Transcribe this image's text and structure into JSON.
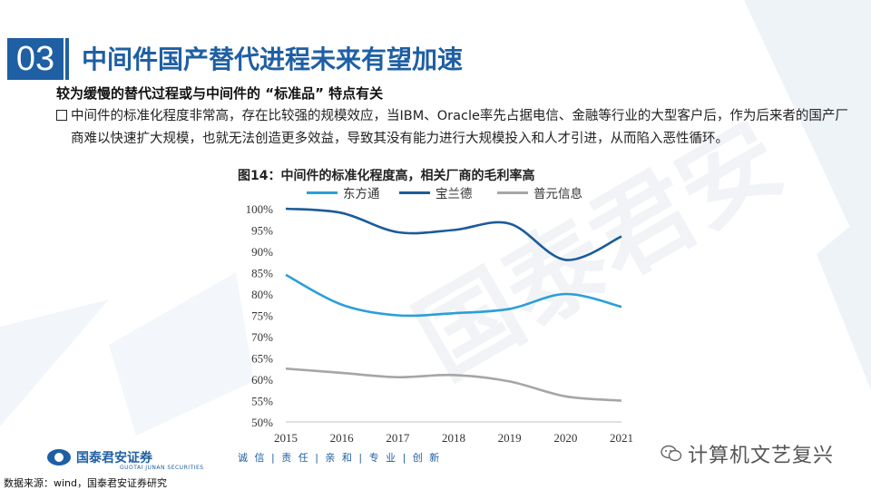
{
  "header": {
    "section_number": "03",
    "title": "中间件国产替代进程未来有望加速"
  },
  "subtitle": "较为缓慢的替代过程或与中间件的 “标准品” 特点有关",
  "body_text": "中间件的标准化程度非常高，存在比较强的规模效应，当IBM、Oracle率先占据电信、金融等行业的大型客户后，作为后来者的国产厂商难以快速扩大规模，也就无法创造更多效益，导致其没有能力进行大规模投入和人才引进，从而陷入恶性循环。",
  "chart_data": {
    "type": "line",
    "title": "图14：中间件的标准化程度高，相关厂商的毛利率高",
    "x": [
      2015,
      2016,
      2017,
      2018,
      2019,
      2020,
      2021
    ],
    "x_tick_labels": [
      "2015",
      "2016",
      "2017",
      "2018",
      "2019",
      "2020",
      "2021"
    ],
    "y_tick_labels": [
      "50%",
      "55%",
      "60%",
      "65%",
      "70%",
      "75%",
      "80%",
      "85%",
      "90%",
      "95%",
      "100%"
    ],
    "ylim": [
      50,
      100
    ],
    "y_ticks": [
      50,
      55,
      60,
      65,
      70,
      75,
      80,
      85,
      90,
      95,
      100
    ],
    "series": [
      {
        "name": "东方通",
        "color": "#2a9fd8",
        "values": [
          84.5,
          77.5,
          75,
          75.5,
          76.5,
          80,
          77
        ]
      },
      {
        "name": "宝兰德",
        "color": "#1b5c9a",
        "values": [
          100,
          99,
          94.5,
          95,
          96.5,
          88,
          93.5
        ]
      },
      {
        "name": "普元信息",
        "color": "#a6a6a6",
        "values": [
          62.5,
          61.5,
          60.5,
          61,
          59.5,
          56,
          55
        ]
      }
    ],
    "xlabel": "",
    "ylabel": ""
  },
  "footer": {
    "logo_text": "国泰君安证券",
    "logo_en": "GUOTAI JUNAN SECURITIES",
    "slogan": "诚 信 | 责 任 | 亲 和 | 专 业 | 创 新",
    "source": "数据来源：wind，国泰君安证券研究",
    "wechat_label": "计算机文艺复兴"
  },
  "colors": {
    "brand": "#1f5fa3"
  }
}
